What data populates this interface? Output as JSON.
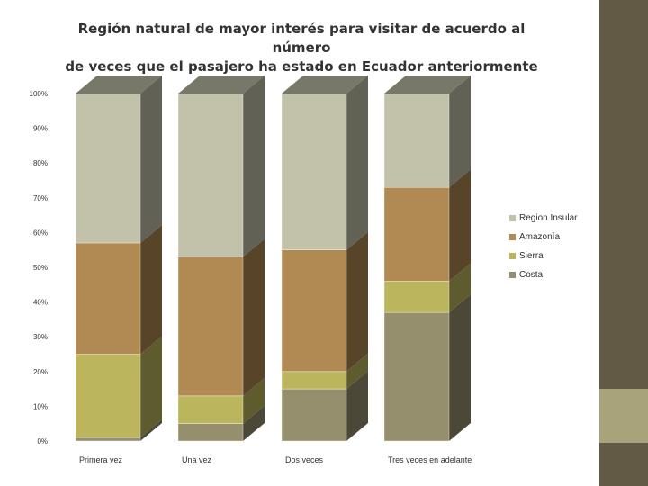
{
  "slide": {
    "title_line1": "Región natural de mayor interés para visitar de acuerdo al número",
    "title_line2": "de veces que el pasajero ha estado en Ecuador anteriormente",
    "sidebar_color": "#625a45",
    "accent_color": "#a8a37a"
  },
  "chart_data": {
    "type": "bar",
    "stacked": true,
    "percent_stacked": true,
    "style": "3d",
    "categories": [
      "Primera vez",
      "Una vez",
      "Dos veces",
      "Tres veces en adelante"
    ],
    "series": [
      {
        "name": "Costa",
        "values": [
          1,
          5,
          15,
          37
        ],
        "color": "#968f6e"
      },
      {
        "name": "Sierra",
        "values": [
          24,
          8,
          5,
          9
        ],
        "color": "#bbb65e"
      },
      {
        "name": "Amazonía",
        "values": [
          32,
          40,
          35,
          27
        ],
        "color": "#b08a52"
      },
      {
        "name": "Region Insular",
        "values": [
          43,
          47,
          45,
          27
        ],
        "color": "#c2c1a9"
      }
    ],
    "y_ticks": [
      "0%",
      "10%",
      "20%",
      "30%",
      "40%",
      "50%",
      "60%",
      "70%",
      "80%",
      "90%",
      "100%"
    ],
    "ylim": [
      0,
      100
    ],
    "grid": false,
    "legend_position": "right",
    "legend_order": [
      "Region Insular",
      "Amazonía",
      "Sierra",
      "Costa"
    ]
  }
}
